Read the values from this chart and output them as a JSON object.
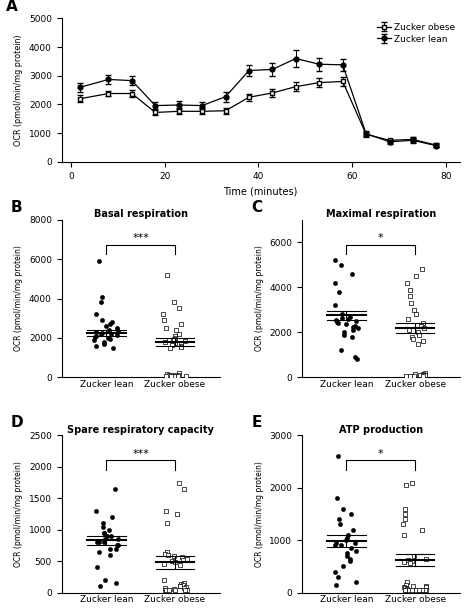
{
  "panel_A": {
    "time_obese": [
      2,
      8,
      13,
      18,
      23,
      28,
      33,
      38,
      43,
      48,
      53,
      58,
      63,
      68,
      73,
      78
    ],
    "mean_obese": [
      2200,
      2380,
      2380,
      1720,
      1760,
      1760,
      1780,
      2250,
      2400,
      2620,
      2760,
      2800,
      960,
      750,
      780,
      580
    ],
    "err_obese": [
      120,
      100,
      130,
      100,
      110,
      100,
      100,
      120,
      130,
      150,
      160,
      160,
      80,
      60,
      80,
      60
    ],
    "time_lean": [
      2,
      8,
      13,
      18,
      23,
      28,
      33,
      38,
      43,
      48,
      53,
      58,
      63,
      68,
      73,
      78
    ],
    "mean_lean": [
      2600,
      2870,
      2830,
      1960,
      1980,
      1960,
      2270,
      3180,
      3220,
      3600,
      3400,
      3380,
      980,
      700,
      750,
      560
    ],
    "err_lean": [
      160,
      160,
      160,
      130,
      150,
      130,
      180,
      200,
      220,
      280,
      230,
      200,
      80,
      70,
      80,
      60
    ],
    "ylim": [
      0,
      5000
    ],
    "yticks": [
      0,
      1000,
      2000,
      3000,
      4000,
      5000
    ],
    "xlabel": "Time (minutes)",
    "ylabel": "OCR (pmol/min/mg protein)",
    "xticks": [
      0,
      20,
      40,
      60,
      80
    ]
  },
  "panel_B": {
    "title": "Basal respiration",
    "ylabel": "OCR (pmol/min/mg protein)",
    "ylim": [
      0,
      8000
    ],
    "yticks": [
      0,
      2000,
      4000,
      6000,
      8000
    ],
    "sig": "***",
    "lean_dots": [
      5900,
      4100,
      3800,
      3200,
      2900,
      2800,
      2700,
      2600,
      2500,
      2400,
      2350,
      2300,
      2250,
      2200,
      2200,
      2150,
      2100,
      2050,
      2000,
      1950,
      1900,
      1800,
      1700,
      1600,
      1500
    ],
    "lean_mean": 2250,
    "lean_sem": 130,
    "obese_dots": [
      5200,
      3800,
      3500,
      3200,
      2900,
      2700,
      2500,
      2400,
      2200,
      2100,
      2000,
      1950,
      1900,
      1850,
      1800,
      1750,
      1700,
      1650,
      1600,
      1550,
      1500,
      200,
      150,
      130,
      110,
      100,
      90,
      80,
      70,
      60,
      50,
      50,
      50
    ],
    "obese_mean": 1800,
    "obese_sem": 200
  },
  "panel_C": {
    "title": "Maximal respiration",
    "ylabel": "OCR (pmol/min/mg protein)",
    "ylim": [
      0,
      7000
    ],
    "yticks": [
      0,
      2000,
      4000,
      6000
    ],
    "sig": "*",
    "lean_dots": [
      5200,
      5000,
      4600,
      4200,
      3800,
      3200,
      2800,
      2700,
      2650,
      2600,
      2550,
      2500,
      2450,
      2400,
      2350,
      2300,
      2250,
      2200,
      2100,
      2000,
      1900,
      1800,
      1200,
      900,
      800
    ],
    "lean_mean": 2750,
    "lean_sem": 200,
    "obese_dots": [
      4800,
      4500,
      4200,
      3900,
      3600,
      3300,
      3000,
      2800,
      2600,
      2400,
      2300,
      2200,
      2100,
      2000,
      1900,
      1800,
      1700,
      1600,
      1500,
      200,
      150,
      130,
      110,
      100,
      90,
      80,
      70,
      60,
      50,
      50
    ],
    "obese_mean": 2200,
    "obese_sem": 220
  },
  "panel_D": {
    "title": "Spare respiratory capacity",
    "ylabel": "OCR (pmol/min/mg protein)",
    "ylim": [
      0,
      2500
    ],
    "yticks": [
      0,
      500,
      1000,
      1500,
      2000,
      2500
    ],
    "sig": "***",
    "lean_dots": [
      1650,
      1300,
      1200,
      1100,
      1050,
      1000,
      950,
      950,
      900,
      900,
      850,
      850,
      800,
      800,
      800,
      750,
      750,
      700,
      700,
      650,
      600,
      400,
      200,
      150,
      100
    ],
    "lean_mean": 830,
    "lean_sem": 65,
    "obese_dots": [
      1750,
      1650,
      1300,
      1250,
      1100,
      650,
      620,
      600,
      580,
      560,
      540,
      520,
      500,
      480,
      460,
      440,
      200,
      150,
      130,
      120,
      110,
      100,
      90,
      80,
      70,
      60,
      50,
      50,
      50,
      50,
      50,
      50
    ],
    "obese_mean": 480,
    "obese_sem": 100
  },
  "panel_E": {
    "title": "ATP production",
    "ylabel": "OCR (pmol/min/mg protein)",
    "ylim": [
      0,
      3000
    ],
    "yticks": [
      0,
      1000,
      2000,
      3000
    ],
    "sig": "*",
    "lean_dots": [
      2600,
      1800,
      1600,
      1500,
      1400,
      1300,
      1200,
      1100,
      1050,
      1000,
      950,
      950,
      900,
      900,
      850,
      800,
      750,
      700,
      650,
      600,
      500,
      400,
      300,
      200,
      150
    ],
    "lean_mean": 980,
    "lean_sem": 110,
    "obese_dots": [
      2100,
      2050,
      1600,
      1500,
      1400,
      1300,
      1200,
      1100,
      700,
      650,
      620,
      600,
      580,
      560,
      200,
      150,
      130,
      120,
      110,
      100,
      90,
      80,
      70,
      60,
      50,
      50,
      50,
      50,
      50,
      50,
      50,
      50,
      50
    ],
    "obese_mean": 620,
    "obese_sem": 120
  }
}
